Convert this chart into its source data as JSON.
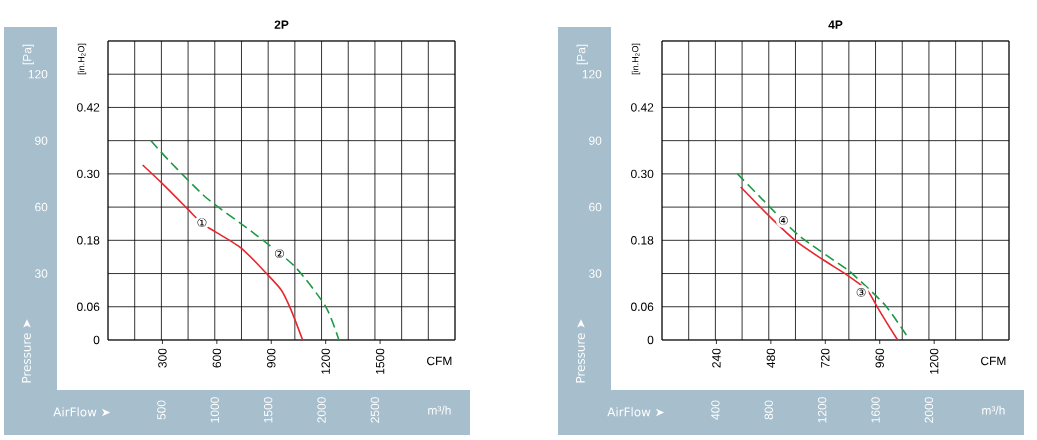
{
  "chart_data": [
    {
      "type": "line",
      "title": "2P",
      "xlabel": "CFM",
      "x2label": "m³/h",
      "ylabel": "[Pa]",
      "y2label": "[in.H$_{2}$O]",
      "grid": true,
      "xlim": [
        0,
        1913
      ],
      "xticks": [
        300,
        600,
        900,
        1200,
        1500
      ],
      "x2lim": [
        0,
        3250
      ],
      "x2ticks": [
        {
          "value": 0,
          "label": null
        },
        {
          "value": 250,
          "label": null
        },
        500,
        {
          "value": 750,
          "label": null
        },
        1000,
        {
          "value": 1250,
          "label": null
        },
        1500,
        {
          "value": 1750,
          "label": null
        },
        2000,
        {
          "value": 2250,
          "label": null
        },
        2500,
        {
          "value": 2750,
          "label": null
        },
        {
          "value": 3000,
          "label": null
        },
        {
          "value": 3250,
          "label": null
        }
      ],
      "ylim": [
        0,
        135
      ],
      "yticks": [
        {
          "value": 0,
          "label": null
        },
        {
          "value": 15,
          "label": null
        },
        30,
        {
          "value": 45,
          "label": null
        },
        60,
        {
          "value": 75,
          "label": null
        },
        90,
        {
          "value": 105,
          "label": null
        },
        120,
        {
          "value": 135,
          "label": null
        }
      ],
      "y2lim": [
        0,
        0.54
      ],
      "y2ticks": [
        0,
        0.06,
        0.18,
        {
          "value": 0.3,
          "label": "0.30"
        },
        0.42
      ],
      "series": [
        {
          "color": "#e8262b",
          "line_style": "solid",
          "x": [
            191,
            300,
            436,
            518,
            591,
            736,
            873,
            955,
            1009,
            1073
          ],
          "values": [
            79,
            70.6,
            59.4,
            52.6,
            48.9,
            41.4,
            30.1,
            22.6,
            13.6,
            0
          ]
        },
        {
          "color": "#1a9a45",
          "line_style": "dashed",
          "x": [
            237,
            336,
            545,
            791,
            1027,
            1200,
            1273
          ],
          "values": [
            90,
            81,
            64,
            49,
            33.4,
            15.1,
            0
          ]
        }
      ],
      "annotations": [
        "Pressure ➤",
        "AirFlow ➤",
        {
          "text": "①",
          "x": 518,
          "y": 53
        },
        {
          "text": "②",
          "x": 945,
          "y": 39
        }
      ]
    },
    {
      "type": "line",
      "title": "4P",
      "xlabel": "CFM",
      "x2label": "m³/h",
      "ylabel": "[Pa]",
      "y2label": "[in.H$_{2}$O]",
      "grid": true,
      "xlim": [
        0,
        1530
      ],
      "xticks": [
        240,
        480,
        720,
        960,
        1200
      ],
      "x2lim": [
        0,
        2600
      ],
      "x2ticks": [
        {
          "value": 0,
          "label": null
        },
        {
          "value": 200,
          "label": null
        },
        400,
        {
          "value": 600,
          "label": null
        },
        800,
        {
          "value": 1000,
          "label": null
        },
        1200,
        {
          "value": 1400,
          "label": null
        },
        1600,
        {
          "value": 1800,
          "label": null
        },
        2000,
        {
          "value": 2200,
          "label": null
        },
        {
          "value": 2400,
          "label": null
        },
        {
          "value": 2600,
          "label": null
        }
      ],
      "ylim": [
        0,
        135
      ],
      "yticks": [
        {
          "value": 0,
          "label": null
        },
        {
          "value": 15,
          "label": null
        },
        30,
        {
          "value": 45,
          "label": null
        },
        60,
        {
          "value": 75,
          "label": null
        },
        90,
        {
          "value": 105,
          "label": null
        },
        120,
        {
          "value": 135,
          "label": null
        }
      ],
      "y2lim": [
        0,
        0.54
      ],
      "y2ticks": [
        0,
        0.06,
        0.18,
        {
          "value": 0.3,
          "label": "0.30"
        },
        0.42
      ],
      "series": [
        {
          "color": "#e8262b",
          "line_style": "solid",
          "x": [
            347,
            476,
            594,
            712,
            815,
            904,
            948,
            992,
            1039
          ],
          "values": [
            69.1,
            55.6,
            44.4,
            36.1,
            29.4,
            22.6,
            15.1,
            7.6,
            0
          ]
        },
        {
          "color": "#1a9a45",
          "line_style": "dashed",
          "x": [
            332,
            432,
            601,
            808,
            845,
            985,
            1092
          ],
          "values": [
            75.1,
            64.6,
            47.4,
            32.4,
            29.4,
            15.6,
            0
          ]
        }
      ],
      "annotations": [
        "Pressure ➤",
        "AirFlow ➤",
        {
          "text": "④",
          "x": 535,
          "y": 54
        },
        {
          "text": "③",
          "x": 878,
          "y": 21.5
        }
      ]
    }
  ]
}
